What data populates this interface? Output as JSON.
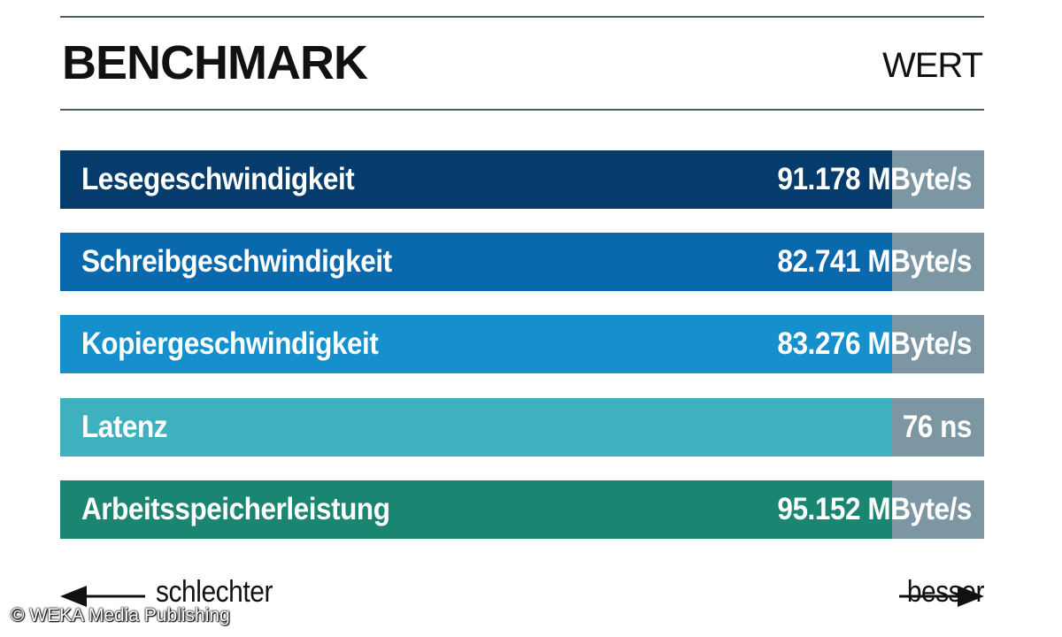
{
  "header": {
    "title": "BENCHMARK",
    "value_column": "WERT"
  },
  "chart_data": {
    "type": "bar",
    "orientation": "horizontal",
    "categories": [
      "Lesegeschwindigkeit",
      "Schreibgeschwindigkeit",
      "Kopiergeschwindigkeit",
      "Latenz",
      "Arbeitsspeicherleistung"
    ],
    "value_labels": [
      "91.178 MByte/s",
      "82.741 MByte/s",
      "83.276 MByte/s",
      "76 ns",
      "95.152 MByte/s"
    ],
    "values": [
      91.178,
      82.741,
      83.276,
      76,
      95.152
    ],
    "fill_fraction": [
      0.9,
      0.9,
      0.9,
      0.9,
      0.9
    ],
    "colors": [
      "#053c6c",
      "#0a68ad",
      "#1590cc",
      "#3fb0bd",
      "#1a8570"
    ],
    "remainder_color": "#7c97a3"
  },
  "axis": {
    "left_label": "schlechter",
    "right_label": "besser"
  },
  "credit": "© WEKA Media Publishing"
}
